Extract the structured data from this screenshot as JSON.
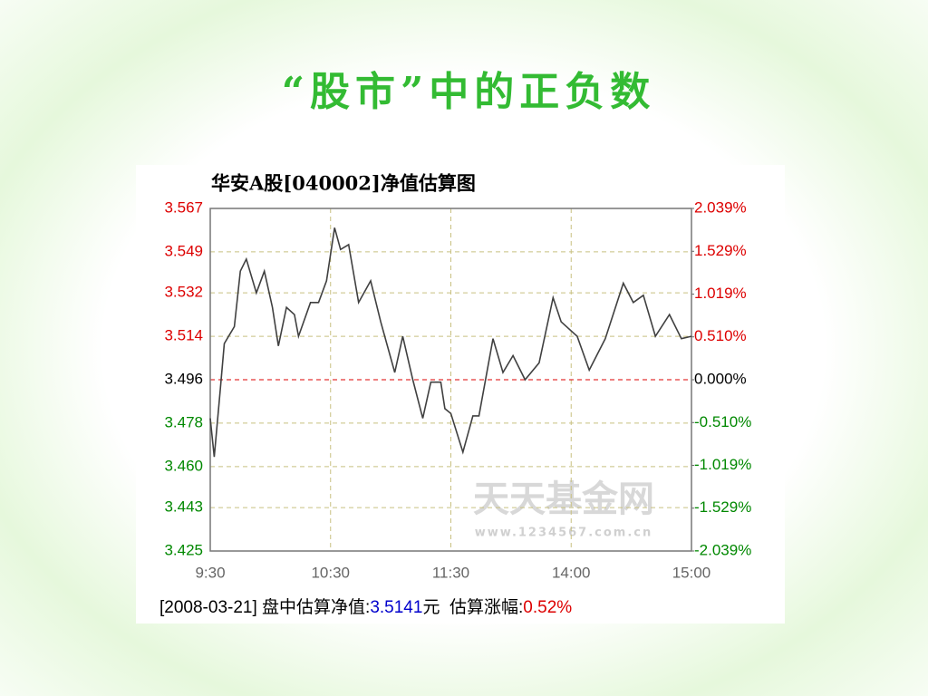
{
  "slide_title": "“股市”中的正负数",
  "chart_data": {
    "type": "line",
    "title": "华安A股[040002]净值估算图",
    "x": [
      0,
      2,
      5,
      7,
      12,
      15,
      18,
      23,
      27,
      31,
      34,
      38,
      42,
      44,
      50,
      54,
      58,
      62,
      65,
      69,
      74,
      80,
      85,
      92,
      96,
      101,
      106,
      110,
      115,
      117,
      120,
      126,
      131,
      134,
      141,
      146,
      151,
      157,
      164,
      171,
      175,
      183,
      189,
      197,
      206,
      211,
      216,
      222,
      229,
      235,
      240
    ],
    "series": [
      {
        "color": "#404040",
        "values": [
          3.48,
          3.464,
          3.492,
          3.511,
          3.518,
          3.541,
          3.546,
          3.532,
          3.541,
          3.526,
          3.51,
          3.526,
          3.523,
          3.514,
          3.528,
          3.528,
          3.537,
          3.559,
          3.55,
          3.552,
          3.528,
          3.537,
          3.52,
          3.499,
          3.514,
          3.496,
          3.48,
          3.495,
          3.495,
          3.484,
          3.482,
          3.466,
          3.481,
          3.481,
          3.513,
          3.499,
          3.506,
          3.496,
          3.503,
          3.53,
          3.52,
          3.514,
          3.5,
          3.513,
          3.536,
          3.528,
          3.531,
          3.514,
          3.523,
          3.513,
          3.514
        ]
      }
    ],
    "xlim": [
      0,
      240
    ],
    "xticks": [
      {
        "value": 0,
        "label": "9:30"
      },
      {
        "value": 60,
        "label": "10:30"
      },
      {
        "value": 120,
        "label": "11:30"
      },
      {
        "value": 180,
        "label": "14:00"
      },
      {
        "value": 240,
        "label": "15:00"
      }
    ],
    "ylim": [
      3.425,
      3.567
    ],
    "yticks": [
      3.567,
      3.549,
      3.532,
      3.514,
      3.496,
      3.478,
      {
        "value": 3.46,
        "label": "3.460"
      },
      3.443,
      3.425
    ],
    "y2lim": [
      -2.039,
      2.039
    ],
    "y2ticks": [
      {
        "value": 2.039,
        "label": "2.039%"
      },
      {
        "value": 1.529,
        "label": "1.529%"
      },
      {
        "value": 1.019,
        "label": "1.019%"
      },
      {
        "value": 0.51,
        "label": "0.510%"
      },
      {
        "value": 0,
        "label": "0.000%"
      },
      {
        "value": -0.51,
        "label": "-0.510%"
      },
      {
        "value": -1.019,
        "label": "-1.019%"
      },
      {
        "value": -1.529,
        "label": "-1.529%"
      },
      {
        "value": -2.039,
        "label": "-2.039%"
      }
    ],
    "grid": true,
    "grid_color": "#c8c080",
    "up_color": "#dd0000",
    "down_color": "#008800",
    "flat_color": "#000000",
    "watermark": "天天基金网",
    "watermark_url": "www.1234567.com.cn",
    "footer": {
      "date": "[2008-03-21]",
      "nav_label": " 盘中估算净值:",
      "nav": "3.5141",
      "unit": "元",
      "change_label": "  估算涨幅:",
      "change": "0.52%"
    }
  }
}
